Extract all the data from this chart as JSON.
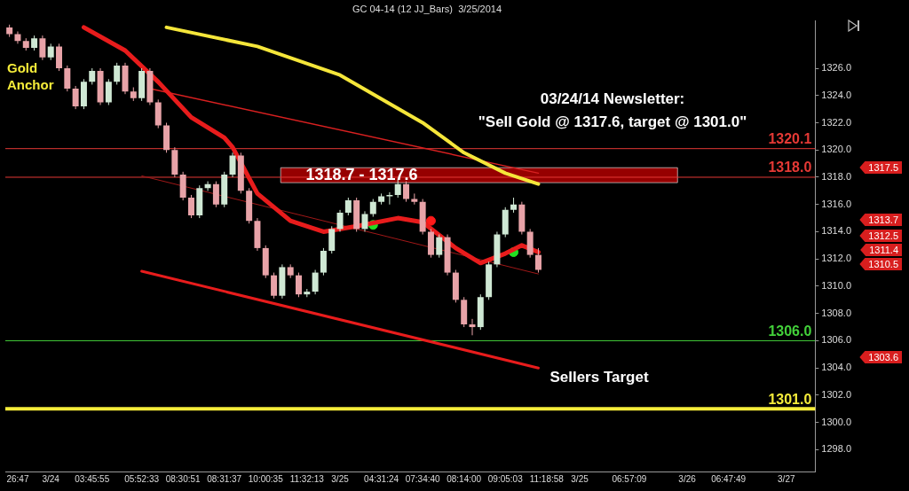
{
  "chart_data": {
    "type": "candlestick",
    "title": "GC 04-14 (12 JJ_Bars)  3/25/2014",
    "categories": [
      null,
      "26:47",
      null,
      null,
      null,
      "3/24",
      null,
      null,
      null,
      null,
      "03:45:55",
      null,
      null,
      null,
      null,
      null,
      "05:52:33",
      null,
      null,
      null,
      null,
      "08:30:51",
      null,
      null,
      null,
      null,
      "08:31:37",
      null,
      null,
      null,
      null,
      "10:00:35",
      null,
      null,
      null,
      null,
      "11:32:13",
      null,
      null,
      null,
      "3/25",
      null,
      null,
      null,
      null,
      "04:31:24",
      null,
      null,
      null,
      null,
      "07:34:40",
      null,
      null,
      null,
      null,
      "08:14:00",
      null,
      null,
      null,
      null,
      "09:05:03",
      null,
      null,
      null,
      null,
      "11:18:58",
      null,
      null,
      null,
      "3/25",
      null,
      null,
      null,
      null,
      null,
      "06:57:09",
      null,
      null,
      null,
      null,
      null,
      null,
      "3/26",
      null,
      null,
      null,
      null,
      "06:47:49",
      null,
      null,
      null,
      null,
      null,
      null,
      "3/27",
      null,
      null,
      null
    ],
    "ohlc": [
      [
        1329.0,
        1329.2,
        1328.3,
        1328.5
      ],
      [
        1328.5,
        1328.7,
        1327.8,
        1328.0
      ],
      [
        1328.0,
        1328.2,
        1327.3,
        1327.5
      ],
      [
        1327.5,
        1328.4,
        1327.3,
        1328.2
      ],
      [
        1328.2,
        1328.4,
        1326.6,
        1326.8
      ],
      [
        1326.8,
        1327.8,
        1326.6,
        1327.6
      ],
      [
        1327.6,
        1327.8,
        1325.8,
        1326.0
      ],
      [
        1326.0,
        1326.2,
        1324.3,
        1324.5
      ],
      [
        1324.5,
        1324.7,
        1323.0,
        1323.2
      ],
      [
        1323.2,
        1325.2,
        1323.0,
        1325.0
      ],
      [
        1325.0,
        1326.0,
        1324.8,
        1325.8
      ],
      [
        1325.8,
        1326.0,
        1323.3,
        1323.5
      ],
      [
        1323.5,
        1325.2,
        1323.3,
        1325.0
      ],
      [
        1325.0,
        1326.4,
        1324.8,
        1326.2
      ],
      [
        1326.2,
        1326.4,
        1324.1,
        1324.3
      ],
      [
        1324.3,
        1324.6,
        1323.6,
        1323.8
      ],
      [
        1323.8,
        1326.0,
        1323.6,
        1325.8
      ],
      [
        1325.8,
        1326.0,
        1323.3,
        1323.5
      ],
      [
        1323.5,
        1323.7,
        1321.6,
        1321.8
      ],
      [
        1321.8,
        1322.0,
        1319.8,
        1320.0
      ],
      [
        1320.0,
        1320.2,
        1318.0,
        1318.2
      ],
      [
        1318.2,
        1318.4,
        1316.3,
        1316.5
      ],
      [
        1316.5,
        1316.7,
        1315.0,
        1315.2
      ],
      [
        1315.2,
        1317.4,
        1315.0,
        1317.2
      ],
      [
        1317.2,
        1317.7,
        1317.0,
        1317.5
      ],
      [
        1317.5,
        1317.7,
        1315.8,
        1316.0
      ],
      [
        1316.0,
        1318.4,
        1315.8,
        1318.2
      ],
      [
        1318.2,
        1319.8,
        1318.0,
        1319.6
      ],
      [
        1319.6,
        1319.8,
        1316.8,
        1317.0
      ],
      [
        1317.0,
        1317.2,
        1314.6,
        1314.8
      ],
      [
        1314.8,
        1315.0,
        1312.6,
        1312.8
      ],
      [
        1312.8,
        1313.0,
        1310.6,
        1310.8
      ],
      [
        1310.8,
        1311.0,
        1309.1,
        1309.3
      ],
      [
        1309.3,
        1311.6,
        1309.1,
        1311.4
      ],
      [
        1311.4,
        1311.6,
        1310.6,
        1310.8
      ],
      [
        1310.8,
        1311.0,
        1309.2,
        1309.4
      ],
      [
        1309.4,
        1309.8,
        1309.2,
        1309.6
      ],
      [
        1309.6,
        1311.2,
        1309.4,
        1311.0
      ],
      [
        1311.0,
        1312.8,
        1310.8,
        1312.6
      ],
      [
        1312.6,
        1314.4,
        1312.4,
        1314.2
      ],
      [
        1314.2,
        1315.6,
        1314.0,
        1315.4
      ],
      [
        1315.4,
        1316.5,
        1315.2,
        1316.3
      ],
      [
        1316.3,
        1316.5,
        1314.0,
        1314.2
      ],
      [
        1314.2,
        1315.5,
        1314.0,
        1315.3
      ],
      [
        1315.3,
        1316.4,
        1315.1,
        1316.2
      ],
      [
        1316.2,
        1316.8,
        1316.0,
        1316.6
      ],
      [
        1316.6,
        1316.9,
        1316.0,
        1316.7
      ],
      [
        1316.7,
        1317.9,
        1316.5,
        1317.5
      ],
      [
        1317.5,
        1317.7,
        1316.2,
        1316.4
      ],
      [
        1316.4,
        1316.8,
        1316.0,
        1316.2
      ],
      [
        1316.2,
        1316.4,
        1313.8,
        1314.0
      ],
      [
        1314.0,
        1314.2,
        1312.1,
        1312.3
      ],
      [
        1312.3,
        1313.8,
        1312.1,
        1313.6
      ],
      [
        1313.6,
        1313.8,
        1310.8,
        1311.0
      ],
      [
        1311.0,
        1311.2,
        1308.8,
        1309.0
      ],
      [
        1309.0,
        1309.2,
        1307.0,
        1307.2
      ],
      [
        1307.2,
        1307.6,
        1306.4,
        1307.0
      ],
      [
        1307.0,
        1309.4,
        1306.8,
        1309.2
      ],
      [
        1309.2,
        1311.8,
        1309.0,
        1311.6
      ],
      [
        1311.6,
        1314.0,
        1311.4,
        1313.8
      ],
      [
        1313.8,
        1315.8,
        1313.6,
        1315.6
      ],
      [
        1315.6,
        1316.5,
        1315.4,
        1316.0
      ],
      [
        1316.0,
        1316.2,
        1313.8,
        1314.0
      ],
      [
        1314.0,
        1314.2,
        1312.1,
        1312.3
      ],
      [
        1312.3,
        1312.8,
        1311.0,
        1311.2
      ],
      null,
      null,
      null,
      null,
      null,
      null,
      null,
      null,
      null,
      null,
      null,
      null,
      null,
      null,
      null,
      null,
      null,
      null,
      null,
      null,
      null,
      null,
      null,
      null,
      null,
      null,
      null,
      null,
      null,
      null,
      null,
      null,
      null
    ],
    "series": [
      {
        "type": "line",
        "color": "#f5e63a",
        "values": [
          null,
          null,
          null,
          null,
          null,
          null,
          null,
          null,
          null,
          null,
          null,
          null,
          null,
          null,
          null,
          null,
          null,
          null,
          null,
          1329.0,
          null,
          null,
          null,
          null,
          null,
          null,
          null,
          null,
          null,
          null,
          1327.6,
          null,
          null,
          null,
          null,
          null,
          null,
          null,
          null,
          null,
          1325.5,
          null,
          null,
          null,
          null,
          null,
          null,
          null,
          null,
          null,
          1322.0,
          null,
          null,
          null,
          null,
          1319.8,
          null,
          null,
          null,
          null,
          1318.3,
          null,
          null,
          null,
          1317.5,
          null,
          null,
          null,
          null,
          null,
          null,
          null,
          null,
          null,
          null,
          null,
          null,
          null,
          null,
          null,
          null,
          null,
          null,
          null,
          null,
          null,
          null,
          null,
          null,
          null,
          null,
          null,
          null,
          null,
          null,
          null,
          null,
          null
        ]
      },
      {
        "type": "line",
        "color": "#e81c1c",
        "values": [
          null,
          null,
          null,
          null,
          null,
          null,
          null,
          null,
          null,
          1329.0,
          null,
          null,
          null,
          null,
          1327.3,
          null,
          null,
          null,
          1325.0,
          null,
          null,
          null,
          1322.4,
          null,
          null,
          null,
          1320.9,
          1320.2,
          null,
          null,
          1316.8,
          null,
          null,
          null,
          1314.8,
          null,
          null,
          null,
          1314.0,
          null,
          null,
          null,
          1314.4,
          null,
          null,
          null,
          null,
          1315.0,
          null,
          null,
          1314.7,
          null,
          null,
          null,
          1312.8,
          null,
          null,
          1311.7,
          null,
          null,
          1312.4,
          null,
          1313.0,
          null,
          1312.5,
          null,
          null,
          null,
          null,
          null,
          null,
          null,
          null,
          null,
          null,
          null,
          null,
          null,
          null,
          null,
          null,
          null,
          null,
          null,
          null,
          null,
          null,
          null,
          null,
          null,
          null,
          null,
          null,
          null,
          null,
          null,
          null,
          null
        ]
      },
      {
        "type": "line",
        "color": "#d82020",
        "values": [
          null,
          null,
          null,
          null,
          null,
          null,
          null,
          null,
          null,
          null,
          null,
          null,
          null,
          null,
          null,
          null,
          null,
          1324.5,
          null,
          null,
          null,
          null,
          null,
          null,
          null,
          null,
          null,
          null,
          null,
          null,
          null,
          null,
          null,
          null,
          null,
          null,
          null,
          null,
          null,
          null,
          null,
          null,
          null,
          null,
          null,
          null,
          null,
          null,
          null,
          null,
          null,
          null,
          null,
          null,
          null,
          null,
          null,
          null,
          null,
          null,
          null,
          null,
          null,
          null,
          1318.3,
          null,
          null,
          null,
          null,
          null,
          null,
          null,
          null,
          null,
          null,
          null,
          null,
          null,
          null,
          null,
          null,
          null,
          null,
          null,
          null,
          null,
          null,
          null,
          null,
          null,
          null,
          null,
          null,
          null,
          null,
          null,
          null,
          null
        ]
      },
      {
        "type": "line",
        "color": "#a01818",
        "values": [
          null,
          null,
          null,
          null,
          null,
          null,
          null,
          null,
          null,
          null,
          null,
          null,
          null,
          null,
          null,
          null,
          1318.1,
          null,
          null,
          null,
          null,
          null,
          null,
          null,
          null,
          null,
          null,
          null,
          null,
          null,
          null,
          null,
          null,
          null,
          null,
          null,
          null,
          null,
          null,
          null,
          null,
          null,
          null,
          null,
          null,
          null,
          null,
          null,
          null,
          null,
          null,
          null,
          null,
          null,
          null,
          null,
          null,
          null,
          null,
          null,
          null,
          null,
          null,
          null,
          1310.9,
          null,
          null,
          null,
          null,
          null,
          null,
          null,
          null,
          null,
          null,
          null,
          null,
          null,
          null,
          null,
          null,
          null,
          null,
          null,
          null,
          null,
          null,
          null,
          null,
          null,
          null,
          null,
          null,
          null,
          null,
          null,
          null,
          null
        ]
      },
      {
        "type": "line",
        "color": "#e81c1c",
        "values": [
          null,
          null,
          null,
          null,
          null,
          null,
          null,
          null,
          null,
          null,
          null,
          null,
          null,
          null,
          null,
          null,
          1311.1,
          null,
          null,
          null,
          null,
          null,
          null,
          null,
          null,
          null,
          null,
          null,
          null,
          null,
          null,
          null,
          null,
          null,
          null,
          null,
          null,
          null,
          null,
          null,
          null,
          null,
          null,
          null,
          null,
          null,
          null,
          null,
          null,
          null,
          null,
          null,
          null,
          null,
          null,
          null,
          null,
          null,
          null,
          null,
          null,
          null,
          null,
          null,
          1304.0,
          null,
          null,
          null,
          null,
          null,
          null,
          null,
          null,
          null,
          null,
          null,
          null,
          null,
          null,
          null,
          null,
          null,
          null,
          null,
          null,
          null,
          null,
          null,
          null,
          null,
          null,
          null,
          null,
          null,
          null,
          null,
          null,
          null
        ]
      },
      {
        "type": "scatter",
        "marker": "circle",
        "color": "#22e022",
        "values": [
          null,
          null,
          null,
          null,
          null,
          null,
          null,
          null,
          null,
          null,
          null,
          null,
          null,
          null,
          null,
          null,
          null,
          null,
          null,
          null,
          null,
          null,
          null,
          null,
          null,
          null,
          null,
          null,
          null,
          null,
          null,
          null,
          null,
          null,
          null,
          null,
          null,
          null,
          null,
          null,
          null,
          null,
          null,
          null,
          1314.5,
          null,
          null,
          null,
          null,
          null,
          null,
          null,
          null,
          null,
          null,
          null,
          null,
          null,
          null,
          null,
          null,
          1312.5,
          null,
          null,
          null,
          null,
          null,
          null,
          null,
          null,
          null,
          null,
          null,
          null,
          null,
          null,
          null,
          null,
          null,
          null,
          null,
          null,
          null,
          null,
          null,
          null,
          null,
          null,
          null,
          null,
          null,
          null,
          null,
          null,
          null,
          null,
          null,
          null
        ]
      },
      {
        "type": "scatter",
        "marker": "circle",
        "color": "#ff1a1a",
        "values": [
          null,
          null,
          null,
          null,
          null,
          null,
          null,
          null,
          null,
          null,
          null,
          null,
          null,
          null,
          null,
          null,
          null,
          null,
          null,
          null,
          null,
          null,
          null,
          null,
          null,
          null,
          null,
          null,
          null,
          null,
          null,
          null,
          null,
          null,
          null,
          null,
          null,
          null,
          null,
          null,
          null,
          null,
          null,
          null,
          null,
          null,
          null,
          null,
          null,
          null,
          null,
          1314.8,
          null,
          null,
          null,
          null,
          null,
          null,
          null,
          null,
          null,
          null,
          null,
          null,
          null,
          null,
          null,
          null,
          null,
          null,
          null,
          null,
          null,
          null,
          null,
          null,
          null,
          null,
          null,
          null,
          null,
          null,
          null,
          null,
          null,
          null,
          null,
          null,
          null,
          null,
          null,
          null,
          null,
          null,
          null,
          null,
          null,
          null
        ]
      }
    ],
    "ylim": [
      1296.4,
      1329.5
    ],
    "yticks": [
      {
        "value": 1298,
        "label": "1298.0"
      },
      {
        "value": 1300,
        "label": "1300.0"
      },
      {
        "value": 1302,
        "label": "1302.0"
      },
      {
        "value": 1304,
        "label": "1304.0"
      },
      {
        "value": 1306,
        "label": "1306.0"
      },
      {
        "value": 1308,
        "label": "1308.0"
      },
      {
        "value": 1310,
        "label": "1310.0"
      },
      {
        "value": 1312,
        "label": "1312.0"
      },
      {
        "value": 1314,
        "label": "1314.0"
      },
      {
        "value": 1316,
        "label": "1316.0"
      },
      {
        "value": 1318,
        "label": "1318.0"
      },
      {
        "value": 1320,
        "label": "1320.0"
      },
      {
        "value": 1322,
        "label": "1322.0"
      },
      {
        "value": 1324,
        "label": "1324.0"
      },
      {
        "value": 1326,
        "label": "1326.0"
      }
    ],
    "ref_lines": [
      {
        "axis": "y",
        "value": 1320.1,
        "label": "1320.1",
        "color": "#e53935"
      },
      {
        "axis": "y",
        "value": 1318.0,
        "label": "1318.0",
        "color": "#e53935"
      },
      {
        "axis": "y",
        "value": 1306.0,
        "label": "1306.0",
        "color": "#43d13a"
      },
      {
        "axis": "y",
        "value": 1301.0,
        "label": "1301.0",
        "color": "#f5ec3a"
      }
    ],
    "bands": [
      {
        "axis": "y",
        "from": 1317.6,
        "to": 1318.7,
        "label": "1318.7 - 1317.6",
        "color": "#b00000"
      }
    ],
    "annotations": [
      "Gold Anchor",
      "03/24/14 Newsletter:",
      "\"Sell Gold @ 1317.6, target @ 1301.0\"",
      "Sellers Target",
      "1317.5",
      "1313.7",
      "1312.5",
      "1311.4",
      "1310.5",
      "1303.6"
    ],
    "legend": false
  }
}
